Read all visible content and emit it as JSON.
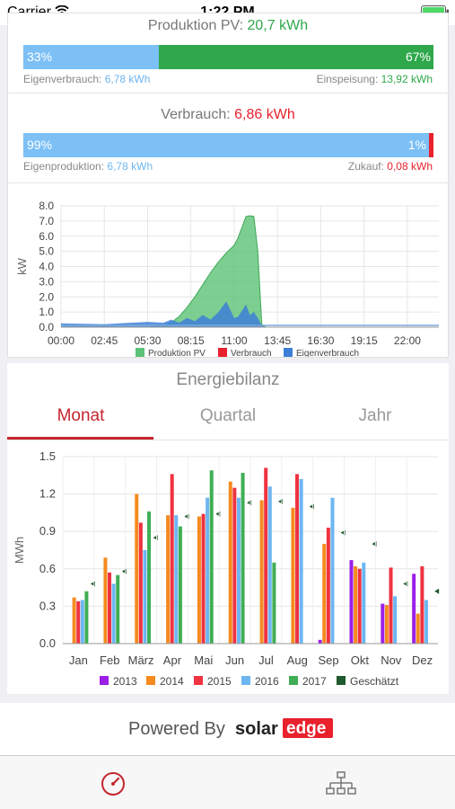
{
  "status_bar": {
    "carrier": "Carrier",
    "time": "1:22 PM"
  },
  "production": {
    "label": "Produktion PV:",
    "value": "20,7 kWh",
    "left_pct": "33%",
    "right_pct": "67%",
    "left_fraction": 0.33,
    "left_caption_label": "Eigenverbrauch:",
    "left_caption_value": "6,78 kWh",
    "right_caption_label": "Einspeisung:",
    "right_caption_value": "13,92 kWh"
  },
  "consumption": {
    "label": "Verbrauch:",
    "value": "6,86 kWh",
    "left_pct": "99%",
    "right_pct": "1%",
    "left_fraction": 0.99,
    "left_caption_label": "Eigenproduktion:",
    "left_caption_value": "6,78 kWh",
    "right_caption_label": "Zukauf:",
    "right_caption_value": "0,08 kWh"
  },
  "colors": {
    "green": "#2ea84a",
    "light_blue": "#7cc0f6",
    "red": "#e8212d",
    "accent": "#c4262e"
  },
  "power_chart": {
    "ylabel": "kW",
    "yticks": [
      "8.0",
      "7.0",
      "6.0",
      "5.0",
      "4.0",
      "3.0",
      "2.0",
      "1.0",
      "0.0"
    ],
    "xticks": [
      "00:00",
      "02:45",
      "05:30",
      "08:15",
      "11:00",
      "13:45",
      "16:30",
      "19:15",
      "22:00"
    ],
    "legend": [
      "Produktion PV",
      "Verbrauch",
      "Eigenverbrauch"
    ]
  },
  "balance": {
    "title": "Energiebilanz",
    "tabs": [
      "Monat",
      "Quartal",
      "Jahr"
    ],
    "active_tab": "Monat"
  },
  "chart_data": [
    {
      "type": "area",
      "ylabel": "kW",
      "ylim": [
        0,
        8
      ],
      "x": [
        "00:00",
        "02:45",
        "05:30",
        "06:30",
        "07:00",
        "07:30",
        "08:00",
        "08:30",
        "09:00",
        "09:30",
        "10:00",
        "10:30",
        "11:00",
        "11:15",
        "11:30",
        "11:45",
        "12:00",
        "12:15",
        "12:30",
        "12:45",
        "13:00",
        "13:45",
        "16:30",
        "19:15",
        "22:00",
        "24:00"
      ],
      "series": [
        {
          "name": "Produktion PV",
          "color": "#5cc276",
          "values": [
            0,
            0,
            0,
            0.1,
            0.3,
            0.7,
            1.3,
            2.0,
            2.8,
            3.6,
            4.3,
            4.9,
            5.4,
            5.9,
            6.6,
            7.3,
            7.35,
            7.3,
            5.0,
            0.2,
            0,
            0,
            0,
            0,
            0,
            0
          ]
        },
        {
          "name": "Verbrauch",
          "color": "#e8212d",
          "values": [
            0.12,
            0.12,
            0.12,
            0.12,
            0.12,
            0.12,
            0.12,
            0.12,
            0.12,
            0.12,
            0.12,
            0.12,
            0.12,
            0.12,
            0.12,
            0.12,
            0.12,
            0.12,
            0.12,
            0.12,
            0.12,
            0.12,
            0.12,
            0.12,
            0.12,
            0.12
          ]
        },
        {
          "name": "Eigenverbrauch",
          "color": "#3d7fd6",
          "values": [
            0.25,
            0.2,
            0.35,
            0.3,
            0.5,
            0.3,
            0.6,
            0.4,
            0.8,
            0.5,
            1.0,
            1.7,
            0.6,
            0.7,
            1.1,
            1.5,
            0.8,
            1.0,
            0.6,
            0.1,
            0,
            0,
            0,
            0,
            0,
            0
          ]
        }
      ]
    },
    {
      "type": "bar",
      "ylabel": "MWh",
      "ylim": [
        0,
        1.5
      ],
      "yticks": [
        "1.5",
        "1.2",
        "0.9",
        "0.6",
        "0.3",
        "0.0"
      ],
      "categories": [
        "Jan",
        "Feb",
        "März",
        "Apr",
        "Mai",
        "Jun",
        "Jul",
        "Aug",
        "Sep",
        "Okt",
        "Nov",
        "Dez"
      ],
      "series": [
        {
          "name": "2013",
          "color": "#9b1fe8",
          "values": [
            null,
            null,
            null,
            null,
            null,
            null,
            null,
            null,
            0.03,
            0.67,
            0.32,
            0.56
          ]
        },
        {
          "name": "2014",
          "color": "#f58a1f",
          "values": [
            0.37,
            0.69,
            1.2,
            1.03,
            1.02,
            1.3,
            1.15,
            1.09,
            0.8,
            0.62,
            0.31,
            0.24
          ]
        },
        {
          "name": "2015",
          "color": "#ef3340",
          "values": [
            0.34,
            0.57,
            0.97,
            1.36,
            1.04,
            1.25,
            1.41,
            1.36,
            0.93,
            0.6,
            0.61,
            0.62
          ]
        },
        {
          "name": "2016",
          "color": "#6db6f2",
          "values": [
            0.35,
            0.48,
            0.75,
            1.03,
            1.17,
            1.17,
            1.26,
            1.32,
            1.17,
            0.65,
            0.38,
            0.35
          ]
        },
        {
          "name": "2017",
          "color": "#3fae55",
          "values": [
            0.42,
            0.55,
            1.06,
            0.94,
            1.39,
            1.37,
            0.65,
            null,
            null,
            null,
            null,
            null
          ]
        }
      ],
      "estimated": {
        "name": "Geschätzt",
        "color": "#1f5a2e",
        "values": [
          0.48,
          0.58,
          0.85,
          1.02,
          1.04,
          1.13,
          1.14,
          1.1,
          0.89,
          0.8,
          0.48,
          0.42
        ]
      }
    }
  ],
  "footer": {
    "powered_by": "Powered By",
    "brand_a": "solar",
    "brand_b": "edge"
  }
}
